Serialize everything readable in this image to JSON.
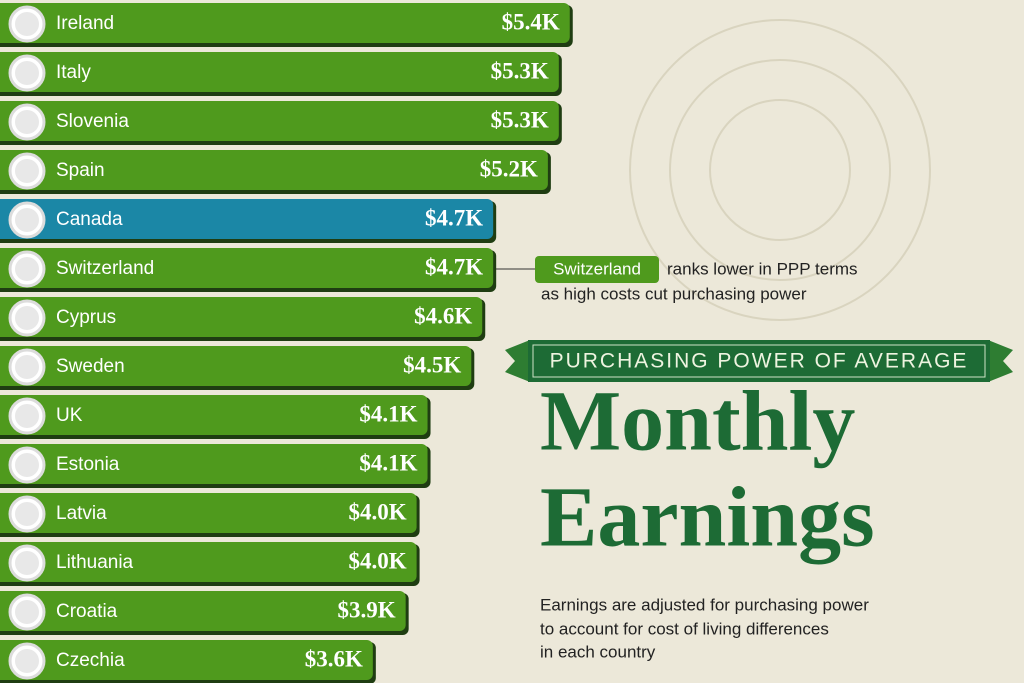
{
  "chart_data": {
    "type": "bar",
    "orientation": "horizontal",
    "supertitle": "PURCHASING POWER OF AVERAGE",
    "title": [
      "Monthly",
      "Earnings"
    ],
    "subtitle": [
      "Earnings are adjusted for purchasing power",
      "to account for cost of living differences",
      "in each country"
    ],
    "annotation": {
      "highlight": "Switzerland",
      "text": [
        "ranks lower in PPP terms",
        "as high costs cut purchasing power"
      ]
    },
    "categories": [
      "Ireland",
      "Italy",
      "Slovenia",
      "Spain",
      "Canada",
      "Switzerland",
      "Cyprus",
      "Sweden",
      "UK",
      "Estonia",
      "Latvia",
      "Lithuania",
      "Croatia",
      "Czechia"
    ],
    "values": [
      5400,
      5300,
      5300,
      5200,
      4700,
      4700,
      4600,
      4500,
      4100,
      4100,
      4000,
      4000,
      3900,
      3600
    ],
    "value_labels": [
      "$5.4K",
      "$5.3K",
      "$5.3K",
      "$5.2K",
      "$4.7K",
      "$4.7K",
      "$4.6K",
      "$4.5K",
      "$4.1K",
      "$4.1K",
      "$4.0K",
      "$4.0K",
      "$3.9K",
      "$3.6K"
    ],
    "colors": [
      "#4f9a1d",
      "#4f9a1d",
      "#4f9a1d",
      "#4f9a1d",
      "#1b87a6",
      "#4f9a1d",
      "#4f9a1d",
      "#4f9a1d",
      "#4f9a1d",
      "#4f9a1d",
      "#4f9a1d",
      "#4f9a1d",
      "#4f9a1d",
      "#4f9a1d"
    ]
  }
}
